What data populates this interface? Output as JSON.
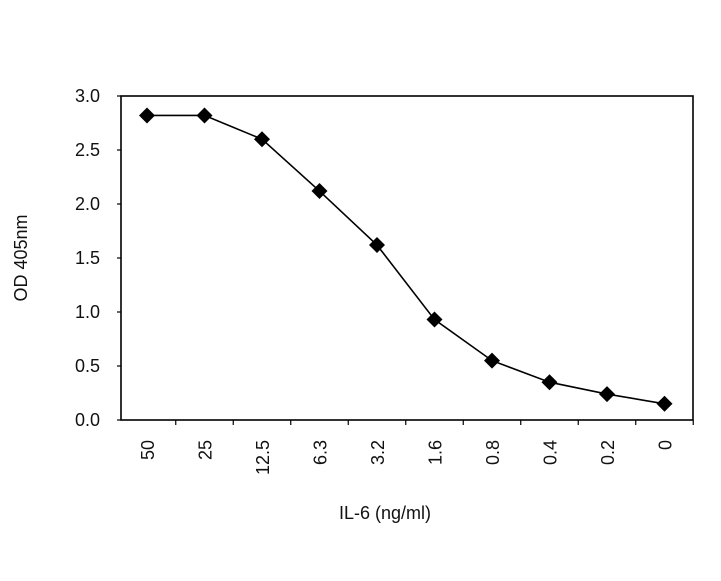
{
  "chart_data": {
    "type": "line",
    "categories": [
      "50",
      "25",
      "12.5",
      "6.3",
      "3.2",
      "1.6",
      "0.8",
      "0.4",
      "0.2",
      "0"
    ],
    "values": [
      2.82,
      2.82,
      2.6,
      2.12,
      1.62,
      0.93,
      0.55,
      0.35,
      0.24,
      0.15
    ],
    "xlabel": "IL-6 (ng/ml)",
    "ylabel": "OD 405nm",
    "ylim": [
      0.0,
      3.0
    ],
    "yticks": [
      "0.0",
      "0.5",
      "1.0",
      "1.5",
      "2.0",
      "2.5",
      "3.0"
    ],
    "marker": "diamond",
    "line_color": "#000000",
    "grid": false,
    "legend": "none"
  }
}
